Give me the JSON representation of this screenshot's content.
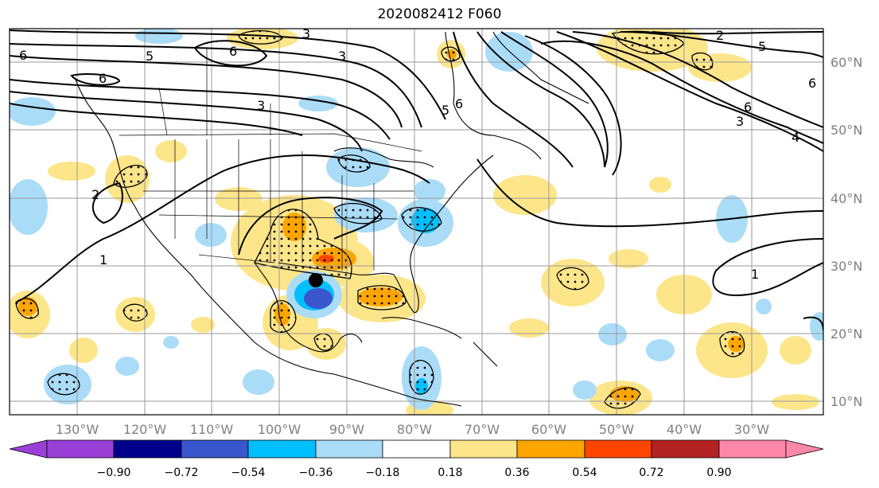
{
  "title": "2020082412 F060",
  "lon_ticks": [
    "130°W",
    "120°W",
    "110°W",
    "100°W",
    "90°W",
    "80°W",
    "70°W",
    "60°W",
    "50°W",
    "40°W",
    "30°W"
  ],
  "lat_ticks": [
    "60°N",
    "50°N",
    "40°N",
    "30°N",
    "20°N",
    "10°N"
  ],
  "colorbar": {
    "labels": [
      "−0.90",
      "−0.72",
      "−0.54",
      "−0.36",
      "−0.18",
      "0.18",
      "0.36",
      "0.54",
      "0.72",
      "0.90"
    ],
    "colors": [
      "#9a3fd8",
      "#00008b",
      "#3a56cc",
      "#00bfff",
      "#aadcf8",
      "#ffffff",
      "#fde58a",
      "#ffa500",
      "#ff4500",
      "#b22222",
      "#ff88aa"
    ]
  },
  "contour_labels": [
    "6",
    "5",
    "6",
    "6",
    "3",
    "3",
    "3",
    "5",
    "6",
    "2",
    "5",
    "6",
    "6",
    "3",
    "4",
    "2",
    "1",
    "1"
  ],
  "colors": {
    "contour": "#000000",
    "grid": "#999999",
    "storm_marker": "#000000"
  }
}
